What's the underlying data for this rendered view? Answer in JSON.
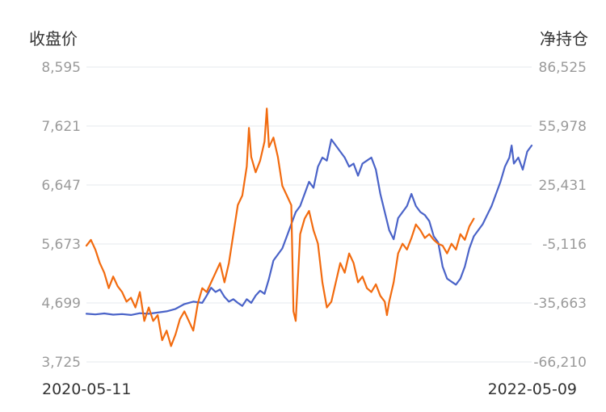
{
  "chart_data": {
    "type": "line",
    "left_axis": {
      "label": "收盘价",
      "ticks": [
        "8,595",
        "7,621",
        "6,647",
        "5,673",
        "4,699",
        "3,725"
      ],
      "range": [
        3725,
        8595
      ]
    },
    "right_axis": {
      "label": "净持仓",
      "ticks": [
        "86,525",
        "55,978",
        "25,431",
        "-5,116",
        "-35,663",
        "-66,210"
      ],
      "range": [
        -66210,
        86525
      ]
    },
    "x_labels": {
      "start": "2020-05-11",
      "end": "2022-05-09"
    },
    "grid": true,
    "colors": {
      "price": "#4A63C8",
      "position": "#F26B0F"
    },
    "series": [
      {
        "axis": "left",
        "color": "#4A63C8",
        "points": [
          [
            0,
            4520
          ],
          [
            0.02,
            4510
          ],
          [
            0.04,
            4525
          ],
          [
            0.06,
            4505
          ],
          [
            0.08,
            4515
          ],
          [
            0.1,
            4500
          ],
          [
            0.12,
            4530
          ],
          [
            0.14,
            4520
          ],
          [
            0.16,
            4540
          ],
          [
            0.18,
            4560
          ],
          [
            0.2,
            4600
          ],
          [
            0.22,
            4680
          ],
          [
            0.24,
            4720
          ],
          [
            0.26,
            4700
          ],
          [
            0.27,
            4820
          ],
          [
            0.28,
            4950
          ],
          [
            0.29,
            4880
          ],
          [
            0.3,
            4920
          ],
          [
            0.31,
            4800
          ],
          [
            0.32,
            4720
          ],
          [
            0.33,
            4760
          ],
          [
            0.34,
            4700
          ],
          [
            0.35,
            4650
          ],
          [
            0.36,
            4760
          ],
          [
            0.37,
            4700
          ],
          [
            0.38,
            4820
          ],
          [
            0.39,
            4900
          ],
          [
            0.4,
            4850
          ],
          [
            0.41,
            5100
          ],
          [
            0.42,
            5400
          ],
          [
            0.43,
            5500
          ],
          [
            0.44,
            5600
          ],
          [
            0.45,
            5800
          ],
          [
            0.46,
            6000
          ],
          [
            0.47,
            6200
          ],
          [
            0.48,
            6300
          ],
          [
            0.49,
            6500
          ],
          [
            0.5,
            6700
          ],
          [
            0.51,
            6600
          ],
          [
            0.52,
            6950
          ],
          [
            0.53,
            7100
          ],
          [
            0.54,
            7050
          ],
          [
            0.55,
            7400
          ],
          [
            0.56,
            7300
          ],
          [
            0.57,
            7200
          ],
          [
            0.58,
            7100
          ],
          [
            0.59,
            6950
          ],
          [
            0.6,
            7000
          ],
          [
            0.61,
            6800
          ],
          [
            0.62,
            7000
          ],
          [
            0.63,
            7050
          ],
          [
            0.64,
            7100
          ],
          [
            0.65,
            6900
          ],
          [
            0.66,
            6500
          ],
          [
            0.67,
            6200
          ],
          [
            0.68,
            5900
          ],
          [
            0.69,
            5750
          ],
          [
            0.7,
            6100
          ],
          [
            0.71,
            6200
          ],
          [
            0.72,
            6300
          ],
          [
            0.73,
            6500
          ],
          [
            0.74,
            6300
          ],
          [
            0.75,
            6200
          ],
          [
            0.76,
            6150
          ],
          [
            0.77,
            6050
          ],
          [
            0.78,
            5800
          ],
          [
            0.79,
            5700
          ],
          [
            0.8,
            5300
          ],
          [
            0.81,
            5100
          ],
          [
            0.82,
            5050
          ],
          [
            0.83,
            5000
          ],
          [
            0.84,
            5100
          ],
          [
            0.85,
            5300
          ],
          [
            0.86,
            5600
          ],
          [
            0.87,
            5800
          ],
          [
            0.88,
            5900
          ],
          [
            0.89,
            6000
          ],
          [
            0.9,
            6150
          ],
          [
            0.91,
            6300
          ],
          [
            0.92,
            6500
          ],
          [
            0.93,
            6700
          ],
          [
            0.94,
            6950
          ],
          [
            0.95,
            7100
          ],
          [
            0.955,
            7300
          ],
          [
            0.96,
            7000
          ],
          [
            0.97,
            7100
          ],
          [
            0.98,
            6900
          ],
          [
            0.99,
            7200
          ],
          [
            1.0,
            7300
          ]
        ]
      },
      {
        "axis": "right",
        "color": "#F26B0F",
        "points": [
          [
            0,
            -6000
          ],
          [
            0.01,
            -3000
          ],
          [
            0.02,
            -8000
          ],
          [
            0.03,
            -15000
          ],
          [
            0.04,
            -20000
          ],
          [
            0.05,
            -28000
          ],
          [
            0.06,
            -22000
          ],
          [
            0.07,
            -27000
          ],
          [
            0.08,
            -30000
          ],
          [
            0.09,
            -35000
          ],
          [
            0.1,
            -33000
          ],
          [
            0.11,
            -38000
          ],
          [
            0.12,
            -30000
          ],
          [
            0.13,
            -45000
          ],
          [
            0.14,
            -38000
          ],
          [
            0.15,
            -45000
          ],
          [
            0.16,
            -42000
          ],
          [
            0.17,
            -55000
          ],
          [
            0.18,
            -50000
          ],
          [
            0.19,
            -58000
          ],
          [
            0.2,
            -52000
          ],
          [
            0.21,
            -44000
          ],
          [
            0.22,
            -40000
          ],
          [
            0.23,
            -45000
          ],
          [
            0.24,
            -50000
          ],
          [
            0.25,
            -36000
          ],
          [
            0.26,
            -28000
          ],
          [
            0.27,
            -30000
          ],
          [
            0.28,
            -25000
          ],
          [
            0.29,
            -20000
          ],
          [
            0.3,
            -15000
          ],
          [
            0.31,
            -25000
          ],
          [
            0.32,
            -15000
          ],
          [
            0.33,
            0
          ],
          [
            0.34,
            15000
          ],
          [
            0.35,
            20000
          ],
          [
            0.36,
            35000
          ],
          [
            0.365,
            55000
          ],
          [
            0.37,
            40000
          ],
          [
            0.38,
            32000
          ],
          [
            0.39,
            38000
          ],
          [
            0.4,
            48000
          ],
          [
            0.405,
            65000
          ],
          [
            0.41,
            45000
          ],
          [
            0.42,
            50000
          ],
          [
            0.43,
            40000
          ],
          [
            0.44,
            25000
          ],
          [
            0.45,
            20000
          ],
          [
            0.46,
            15000
          ],
          [
            0.465,
            -40000
          ],
          [
            0.47,
            -45000
          ],
          [
            0.48,
            0
          ],
          [
            0.49,
            8000
          ],
          [
            0.5,
            12000
          ],
          [
            0.51,
            2000
          ],
          [
            0.52,
            -5000
          ],
          [
            0.53,
            -25000
          ],
          [
            0.54,
            -38000
          ],
          [
            0.55,
            -35000
          ],
          [
            0.56,
            -25000
          ],
          [
            0.57,
            -15000
          ],
          [
            0.58,
            -20000
          ],
          [
            0.59,
            -10000
          ],
          [
            0.6,
            -15000
          ],
          [
            0.61,
            -25000
          ],
          [
            0.62,
            -22000
          ],
          [
            0.63,
            -28000
          ],
          [
            0.64,
            -30000
          ],
          [
            0.65,
            -26000
          ],
          [
            0.66,
            -32000
          ],
          [
            0.67,
            -35000
          ],
          [
            0.675,
            -42000
          ],
          [
            0.68,
            -35000
          ],
          [
            0.69,
            -25000
          ],
          [
            0.7,
            -10000
          ],
          [
            0.71,
            -5000
          ],
          [
            0.72,
            -8000
          ],
          [
            0.73,
            -2000
          ],
          [
            0.74,
            5000
          ],
          [
            0.75,
            2000
          ],
          [
            0.76,
            -2000
          ],
          [
            0.77,
            0
          ],
          [
            0.78,
            -3000
          ],
          [
            0.79,
            -5000
          ],
          [
            0.8,
            -6000
          ],
          [
            0.81,
            -10000
          ],
          [
            0.82,
            -5000
          ],
          [
            0.83,
            -8000
          ],
          [
            0.84,
            0
          ],
          [
            0.85,
            -3000
          ],
          [
            0.86,
            4000
          ],
          [
            0.87,
            8000
          ]
        ]
      }
    ]
  }
}
